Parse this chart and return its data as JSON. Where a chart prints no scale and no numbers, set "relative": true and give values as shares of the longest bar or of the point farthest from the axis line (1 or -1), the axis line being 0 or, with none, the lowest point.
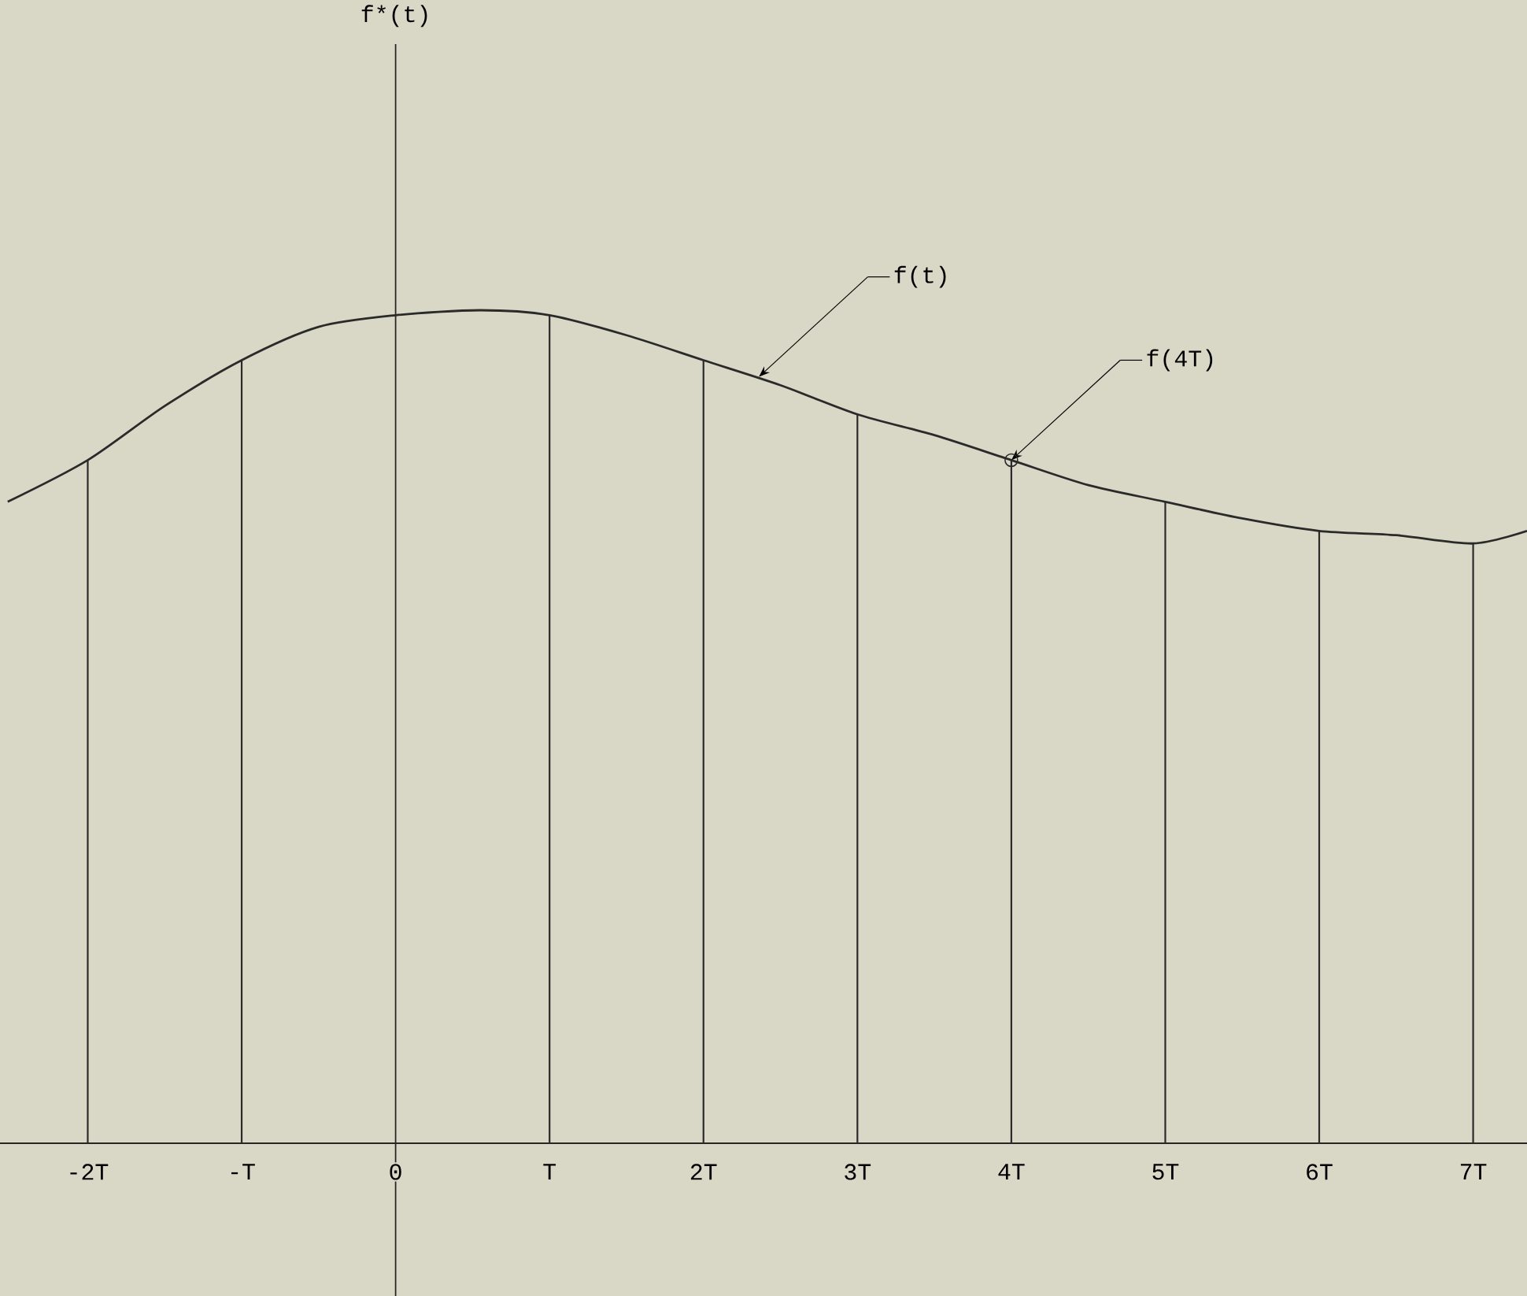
{
  "chart_data": {
    "type": "line",
    "relative": true,
    "xlim": [
      -2.57,
      7.35
    ],
    "xticks": [
      {
        "value": -2,
        "label": "-2T"
      },
      {
        "value": -1,
        "label": "-T"
      },
      {
        "value": 0,
        "label": "0"
      },
      {
        "value": 1,
        "label": "T"
      },
      {
        "value": 2,
        "label": "2T"
      },
      {
        "value": 3,
        "label": "3T"
      },
      {
        "value": 4,
        "label": "4T"
      },
      {
        "value": 5,
        "label": "5T"
      },
      {
        "value": 6,
        "label": "6T"
      },
      {
        "value": 7,
        "label": "7T"
      }
    ],
    "series": [
      {
        "color": "#2a2a2a",
        "x": [
          -2.52,
          -2,
          -1.5,
          -1,
          -0.5,
          0,
          0.55,
          1,
          1.5,
          2,
          2.5,
          3,
          3.5,
          4,
          4.5,
          5,
          5.5,
          6,
          6.5,
          7,
          7.35
        ],
        "values": [
          0.77,
          0.82,
          0.885,
          0.94,
          0.98,
          0.994,
          1,
          0.994,
          0.97,
          0.94,
          0.91,
          0.875,
          0.85,
          0.82,
          0.79,
          0.77,
          0.75,
          0.735,
          0.73,
          0.72,
          0.735
        ]
      },
      {
        "type": "bar",
        "color": "#2a2a2a",
        "x": [
          -2,
          -1,
          1,
          2,
          3,
          4,
          5,
          6,
          7
        ],
        "values": [
          0.82,
          0.94,
          0.994,
          0.94,
          0.875,
          0.82,
          0.77,
          0.735,
          0.72
        ]
      }
    ],
    "annotations": [
      "f*(t)",
      {
        "text": "f(t)",
        "x": 2.36,
        "y": 0.92
      },
      {
        "text": "f(4T)",
        "x": 4,
        "y": 0.82
      }
    ]
  }
}
